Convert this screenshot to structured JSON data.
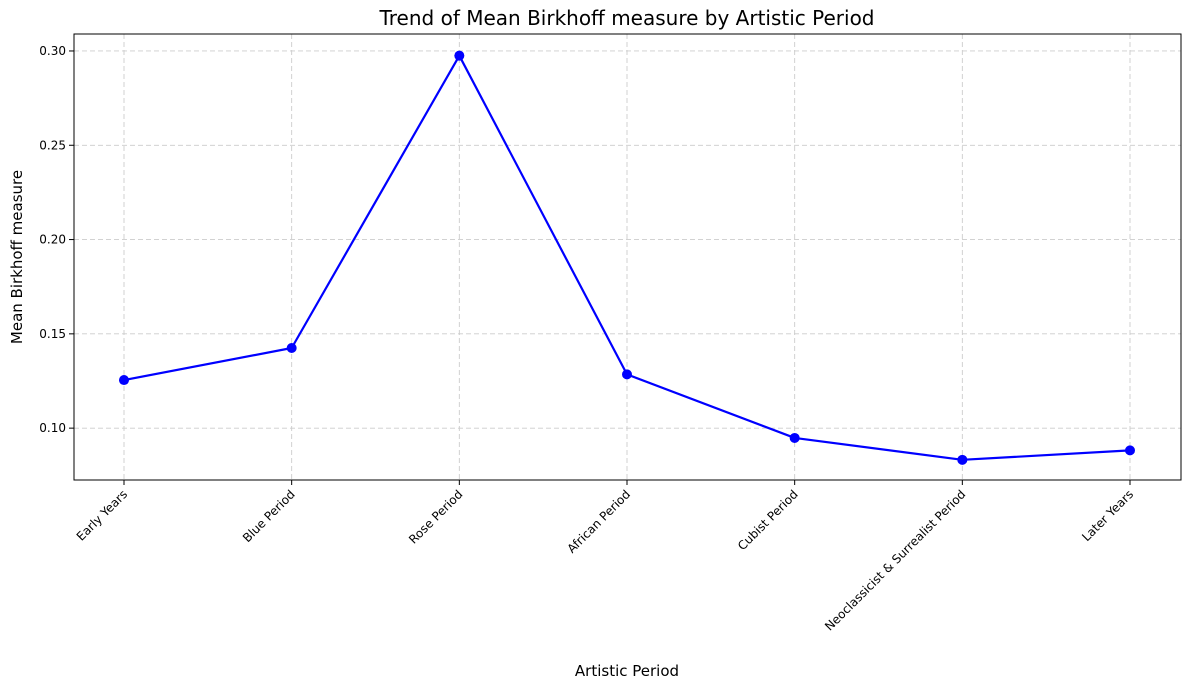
{
  "chart_data": {
    "type": "line",
    "title": "Trend of Mean Birkhoff measure by Artistic Period",
    "xlabel": "Artistic Period",
    "ylabel": "Mean Birkhoff measure",
    "categories": [
      "Early Years",
      "Blue Period",
      "Rose Period",
      "African Period",
      "Cubist Period",
      "Neoclassicist & Surrealist Period",
      "Later Years"
    ],
    "series": [
      {
        "values": [
          0.1255,
          0.1425,
          0.2975,
          0.1285,
          0.0948,
          0.0832,
          0.0882
        ]
      }
    ],
    "ylim": [
      0.0725,
      0.309
    ],
    "yticks": [
      0.1,
      0.15,
      0.2,
      0.25,
      0.3
    ],
    "ytick_labels": [
      "0.10",
      "0.15",
      "0.20",
      "0.25",
      "0.30"
    ],
    "grid": true,
    "line_color": "#0000ff",
    "marker": "circle"
  }
}
